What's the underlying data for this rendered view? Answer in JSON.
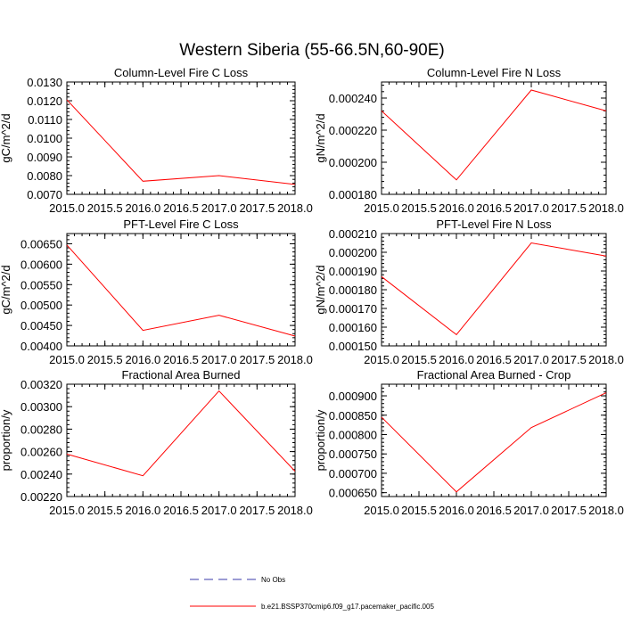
{
  "figure": {
    "title": "Western Siberia (55-66.5N,60-90E)",
    "legend": [
      {
        "label": "No Obs",
        "color": "#3a3aa8",
        "dash": "dashed"
      },
      {
        "label": "b.e21.BSSP370cmip6.f09_g17.pacemaker_pacific.005",
        "color": "#ff0000",
        "dash": "solid"
      }
    ]
  },
  "chart_data": [
    {
      "type": "line",
      "title": "Column-Level Fire C Loss",
      "ylabel": "gC/m^2/d",
      "xlim": [
        2015.0,
        2018.0
      ],
      "ylim": [
        0.007,
        0.013
      ],
      "xticks": [
        "2015.0",
        "2015.5",
        "2016.0",
        "2016.5",
        "2017.0",
        "2017.5",
        "2018.0"
      ],
      "yticks": [
        "0.0070",
        "0.0080",
        "0.0090",
        "0.0100",
        "0.0110",
        "0.0120",
        "0.0130"
      ],
      "color": "#ff0000",
      "series": [
        {
          "x": [
            2015,
            2016,
            2017,
            2018
          ],
          "values": [
            0.01205,
            0.0077,
            0.008,
            0.00753
          ]
        }
      ]
    },
    {
      "type": "line",
      "title": "Column-Level Fire N Loss",
      "ylabel": "gN/m^2/d",
      "xlim": [
        2015.0,
        2018.0
      ],
      "ylim": [
        0.00018,
        0.00025
      ],
      "xticks": [
        "2015.0",
        "2015.5",
        "2016.0",
        "2016.5",
        "2017.0",
        "2017.5",
        "2018.0"
      ],
      "yticks": [
        "0.000180",
        "0.000200",
        "0.000220",
        "0.000240"
      ],
      "color": "#ff0000",
      "series": [
        {
          "x": [
            2015,
            2016,
            2017,
            2018
          ],
          "values": [
            0.000232,
            0.000189,
            0.000245,
            0.000232
          ]
        }
      ]
    },
    {
      "type": "line",
      "title": "PFT-Level Fire C Loss",
      "ylabel": "gC/m^2/d",
      "xlim": [
        2015.0,
        2018.0
      ],
      "ylim": [
        0.004,
        0.00675
      ],
      "xticks": [
        "2015.0",
        "2015.5",
        "2016.0",
        "2016.5",
        "2017.0",
        "2017.5",
        "2018.0"
      ],
      "yticks": [
        "0.00400",
        "0.00450",
        "0.00500",
        "0.00550",
        "0.00600",
        "0.00650"
      ],
      "color": "#ff0000",
      "series": [
        {
          "x": [
            2015,
            2016,
            2017,
            2018
          ],
          "values": [
            0.00647,
            0.00438,
            0.00475,
            0.00424
          ]
        }
      ]
    },
    {
      "type": "line",
      "title": "PFT-Level Fire N Loss",
      "ylabel": "gN/m^2/d",
      "xlim": [
        2015.0,
        2018.0
      ],
      "ylim": [
        0.00015,
        0.00021
      ],
      "xticks": [
        "2015.0",
        "2015.5",
        "2016.0",
        "2016.5",
        "2017.0",
        "2017.5",
        "2018.0"
      ],
      "yticks": [
        "0.000150",
        "0.000160",
        "0.000170",
        "0.000180",
        "0.000190",
        "0.000200",
        "0.000210"
      ],
      "color": "#ff0000",
      "series": [
        {
          "x": [
            2015,
            2016,
            2017,
            2018
          ],
          "values": [
            0.000187,
            0.000156,
            0.000205,
            0.000198
          ]
        }
      ]
    },
    {
      "type": "line",
      "title": "Fractional Area Burned",
      "ylabel": "proportion/y",
      "xlim": [
        2015.0,
        2018.0
      ],
      "ylim": [
        0.0022,
        0.0032
      ],
      "xticks": [
        "2015.0",
        "2015.5",
        "2016.0",
        "2016.5",
        "2017.0",
        "2017.5",
        "2018.0"
      ],
      "yticks": [
        "0.00220",
        "0.00240",
        "0.00260",
        "0.00280",
        "0.00300",
        "0.00320"
      ],
      "color": "#ff0000",
      "series": [
        {
          "x": [
            2015,
            2016,
            2017,
            2018
          ],
          "values": [
            0.002578,
            0.002385,
            0.00314,
            0.002425
          ]
        }
      ]
    },
    {
      "type": "line",
      "title": "Fractional Area Burned - Crop",
      "ylabel": "proportion/y",
      "xlim": [
        2015.0,
        2018.0
      ],
      "ylim": [
        0.00064,
        0.00093
      ],
      "xticks": [
        "2015.0",
        "2015.5",
        "2016.0",
        "2016.5",
        "2017.0",
        "2017.5",
        "2018.0"
      ],
      "yticks": [
        "0.000650",
        "0.000700",
        "0.000750",
        "0.000800",
        "0.000850",
        "0.000900"
      ],
      "color": "#ff0000",
      "series": [
        {
          "x": [
            2015,
            2016,
            2017,
            2018
          ],
          "values": [
            0.000845,
            0.000652,
            0.000818,
            0.000908
          ]
        }
      ]
    }
  ]
}
